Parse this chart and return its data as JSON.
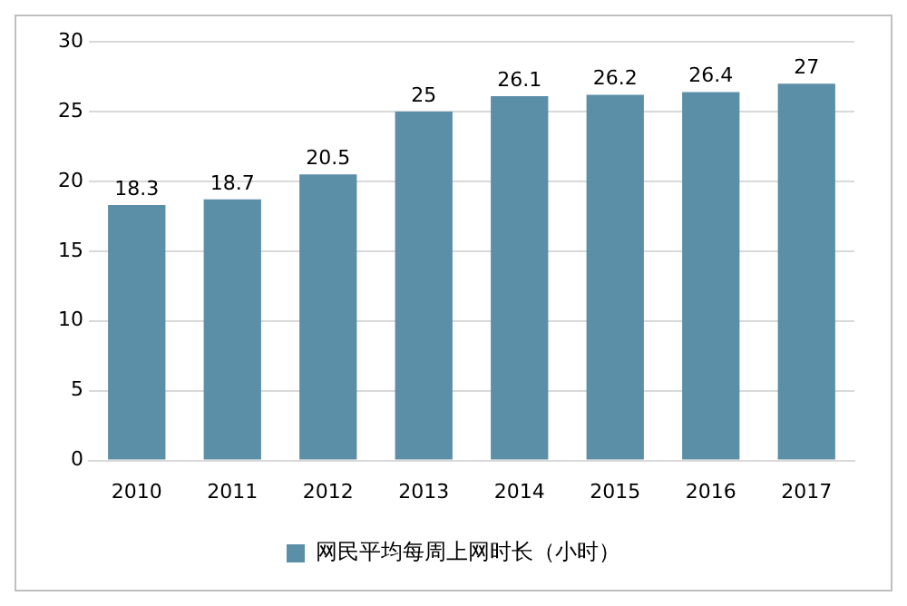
{
  "chart_data": {
    "type": "bar",
    "categories": [
      "2010",
      "2011",
      "2012",
      "2013",
      "2014",
      "2015",
      "2016",
      "2017"
    ],
    "series": [
      {
        "name": "网民平均每周上网时长（小时）",
        "color": "#5b8fa8",
        "values": [
          18.3,
          18.7,
          20.5,
          25,
          26.1,
          26.2,
          26.4,
          27
        ]
      }
    ],
    "ylim": [
      0,
      30
    ],
    "yticks": [
      0,
      5,
      10,
      15,
      20,
      25,
      30
    ],
    "grid": "y",
    "legend": "bottom",
    "data_labels": true
  }
}
